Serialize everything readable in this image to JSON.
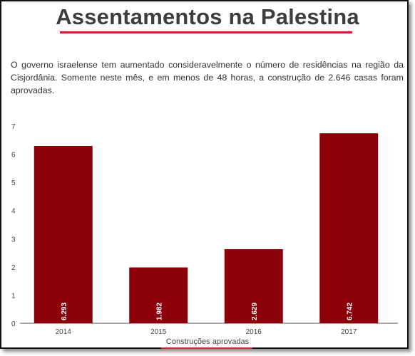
{
  "header": {
    "title": "Assentamentos na Palestina",
    "description": "O governo israelense tem aumentado consideravelmente o número de residências na região da Cisjordânia. Somente neste mês, e em menos de 48 horas,  a construção de 2.646 casas foram aprovadas."
  },
  "colors": {
    "bar": "#8b0009",
    "accent": "#cc1f36",
    "text": "#3d3d3d"
  },
  "chart_data": {
    "type": "bar",
    "title": "",
    "xlabel": "Construções aprovadas",
    "ylabel": "",
    "categories": [
      "2014",
      "2015",
      "2016",
      "2017"
    ],
    "values": [
      6.293,
      1.982,
      2.629,
      6.742
    ],
    "value_labels": [
      "6.293",
      "1.982",
      "2.629",
      "6.742"
    ],
    "ylim": [
      0,
      7
    ],
    "yticks": [
      "0",
      "1",
      "2",
      "3",
      "4",
      "5",
      "6",
      "7"
    ],
    "grid": false,
    "legend": "none"
  }
}
